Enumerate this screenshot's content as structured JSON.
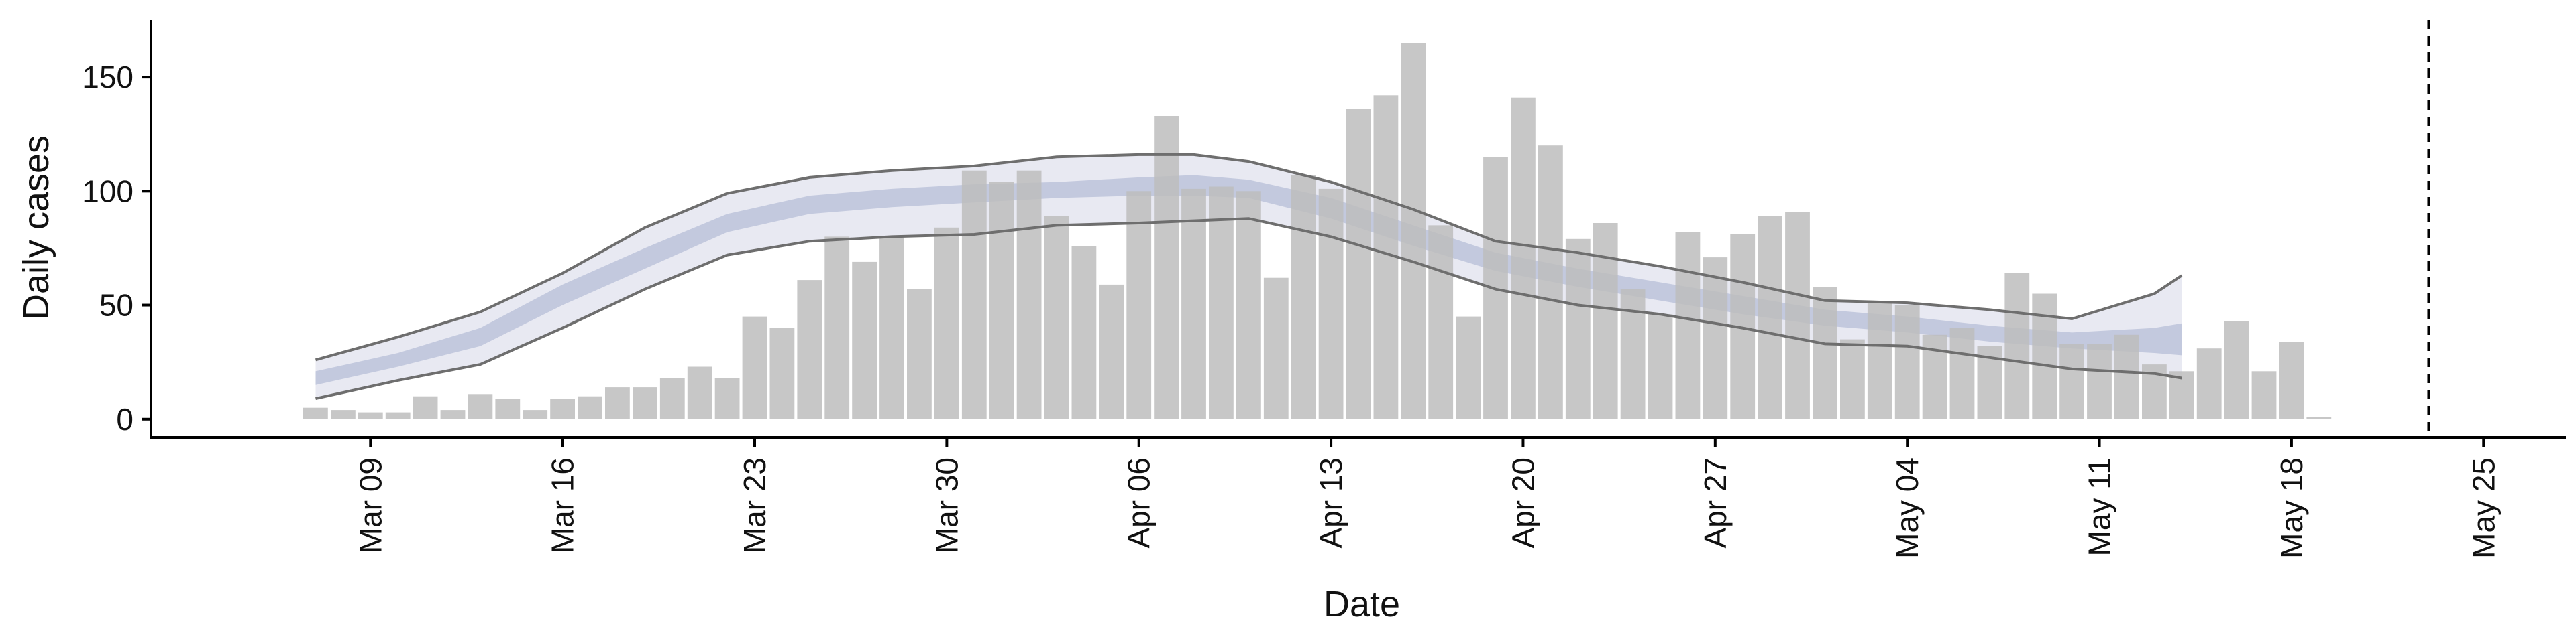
{
  "chart_data": {
    "type": "bar",
    "xlabel": "Date",
    "ylabel": "Daily cases",
    "x_range": [
      "2020-03-01",
      "2020-05-28"
    ],
    "ylim": [
      -8,
      175
    ],
    "y_ticks": [
      0,
      50,
      100,
      150
    ],
    "x_ticks": [
      {
        "date": "2020-03-09",
        "label": "Mar 09"
      },
      {
        "date": "2020-03-16",
        "label": "Mar 16"
      },
      {
        "date": "2020-03-23",
        "label": "Mar 23"
      },
      {
        "date": "2020-03-30",
        "label": "Mar 30"
      },
      {
        "date": "2020-04-06",
        "label": "Apr 06"
      },
      {
        "date": "2020-04-13",
        "label": "Apr 13"
      },
      {
        "date": "2020-04-20",
        "label": "Apr 20"
      },
      {
        "date": "2020-04-27",
        "label": "Apr 27"
      },
      {
        "date": "2020-05-04",
        "label": "May 04"
      },
      {
        "date": "2020-05-11",
        "label": "May 11"
      },
      {
        "date": "2020-05-18",
        "label": "May 18"
      },
      {
        "date": "2020-05-25",
        "label": "May 25"
      }
    ],
    "grid": false,
    "legend": "none",
    "colors": {
      "bars": "#bdbdbd",
      "ribbon_outer": "#e8e9f2",
      "ribbon_inner": "#c3c9de",
      "band_lines": "#6e6e6e",
      "vline": "#000000"
    },
    "reference_line": {
      "date": "2020-05-23",
      "style": "dashed"
    },
    "bars": {
      "start_date": "2020-03-07",
      "values": [
        5,
        4,
        3,
        3,
        10,
        4,
        11,
        9,
        4,
        9,
        10,
        14,
        14,
        18,
        23,
        18,
        45,
        40,
        61,
        80,
        69,
        80,
        57,
        84,
        109,
        104,
        109,
        89,
        76,
        59,
        100,
        133,
        101,
        102,
        100,
        62,
        107,
        101,
        136,
        142,
        165,
        85,
        45,
        115,
        141,
        120,
        79,
        86,
        57,
        46,
        82,
        71,
        81,
        89,
        91,
        58,
        35,
        51,
        50,
        37,
        40,
        32,
        64,
        55,
        33,
        33,
        37,
        24,
        21,
        31,
        43,
        21,
        34,
        1
      ]
    },
    "nowcast_band": {
      "dates": [
        "2020-03-07",
        "2020-03-10",
        "2020-03-13",
        "2020-03-16",
        "2020-03-19",
        "2020-03-22",
        "2020-03-25",
        "2020-03-28",
        "2020-03-31",
        "2020-04-03",
        "2020-04-06",
        "2020-04-08",
        "2020-04-10",
        "2020-04-13",
        "2020-04-16",
        "2020-04-19",
        "2020-04-22",
        "2020-04-25",
        "2020-04-28",
        "2020-05-01",
        "2020-05-04",
        "2020-05-07",
        "2020-05-10",
        "2020-05-13",
        "2020-05-14"
      ],
      "outer_low": [
        9,
        17,
        24,
        40,
        57,
        72,
        78,
        80,
        81,
        85,
        86,
        87,
        88,
        80,
        69,
        57,
        50,
        46,
        40,
        33,
        32,
        27,
        22,
        20,
        18
      ],
      "inner_low": [
        15,
        23,
        32,
        50,
        66,
        82,
        90,
        93,
        95,
        97,
        98,
        98,
        97,
        88,
        76,
        65,
        58,
        52,
        46,
        41,
        38,
        34,
        31,
        29,
        28
      ],
      "inner_high": [
        21,
        29,
        40,
        59,
        75,
        90,
        98,
        101,
        103,
        104,
        106,
        107,
        105,
        97,
        85,
        73,
        66,
        60,
        54,
        48,
        45,
        41,
        38,
        40,
        42
      ],
      "outer_high": [
        26,
        36,
        47,
        64,
        84,
        99,
        106,
        109,
        111,
        115,
        116,
        116,
        113,
        104,
        92,
        78,
        73,
        67,
        60,
        52,
        51,
        48,
        44,
        55,
        63
      ]
    }
  }
}
